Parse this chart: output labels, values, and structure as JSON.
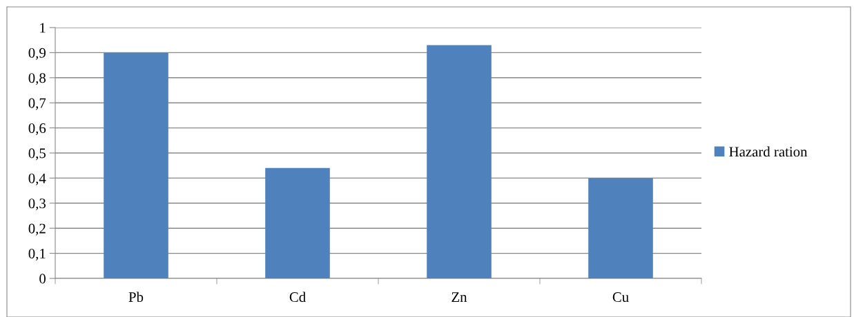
{
  "chart_data": {
    "type": "bar",
    "categories": [
      "Pb",
      "Cd",
      "Zn",
      "Cu"
    ],
    "series": [
      {
        "name": "Hazard ration",
        "color": "#4f81bd",
        "values": [
          0.9,
          0.44,
          0.93,
          0.4
        ]
      }
    ],
    "ylim": [
      0,
      1
    ],
    "yticks": [
      0,
      {
        "value": 0.1,
        "label": "0,1"
      },
      {
        "value": 0.2,
        "label": "0,2"
      },
      {
        "value": 0.3,
        "label": "0,3"
      },
      {
        "value": 0.4,
        "label": "0,4"
      },
      {
        "value": 0.5,
        "label": "0,5"
      },
      {
        "value": 0.6,
        "label": "0,6"
      },
      {
        "value": 0.7,
        "label": "0,7"
      },
      {
        "value": 0.8,
        "label": "0,8"
      },
      {
        "value": 0.9,
        "label": "0,9"
      },
      1
    ],
    "grid": "y",
    "legend": "right"
  }
}
